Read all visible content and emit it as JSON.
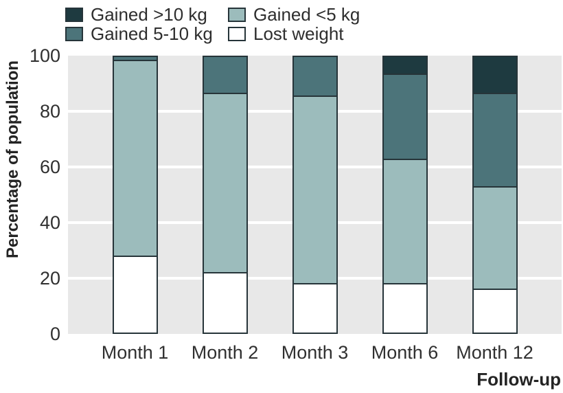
{
  "legend": {
    "items": [
      {
        "label": "Gained >10 kg",
        "color": "#1e3a40"
      },
      {
        "label": "Gained <5 kg",
        "color": "#9cbcbc"
      },
      {
        "label": "Gained 5-10 kg",
        "color": "#4c747a"
      },
      {
        "label": "Lost weight",
        "color": "#ffffff"
      }
    ]
  },
  "chart_data": {
    "type": "bar",
    "subtype": "stacked",
    "title": "",
    "xlabel": "Follow-up",
    "ylabel": "Percentage of population",
    "categories": [
      "Month 1",
      "Month 2",
      "Month 3",
      "Month 6",
      "Month 12"
    ],
    "series": [
      {
        "name": "Lost weight",
        "color": "#ffffff",
        "values": [
          28,
          22,
          18,
          18,
          16
        ]
      },
      {
        "name": "Gained <5 kg",
        "color": "#9cbcbc",
        "values": [
          71,
          65,
          68,
          45,
          37
        ]
      },
      {
        "name": "Gained 5-10 kg",
        "color": "#4c747a",
        "values": [
          1,
          13,
          14,
          31,
          34
        ]
      },
      {
        "name": "Gained >10 kg",
        "color": "#1e3a40",
        "values": [
          0,
          0,
          0,
          6,
          13
        ]
      }
    ],
    "stack_order": "bottom-to-top",
    "ylim": [
      0,
      100
    ],
    "yticks": [
      0,
      20,
      40,
      60,
      80,
      100
    ],
    "legend_position": "top",
    "grid": "horizontal",
    "plot_background": "#e8e8e8",
    "gridline_color": "#ffffff",
    "bar_border_color": "#263439"
  }
}
